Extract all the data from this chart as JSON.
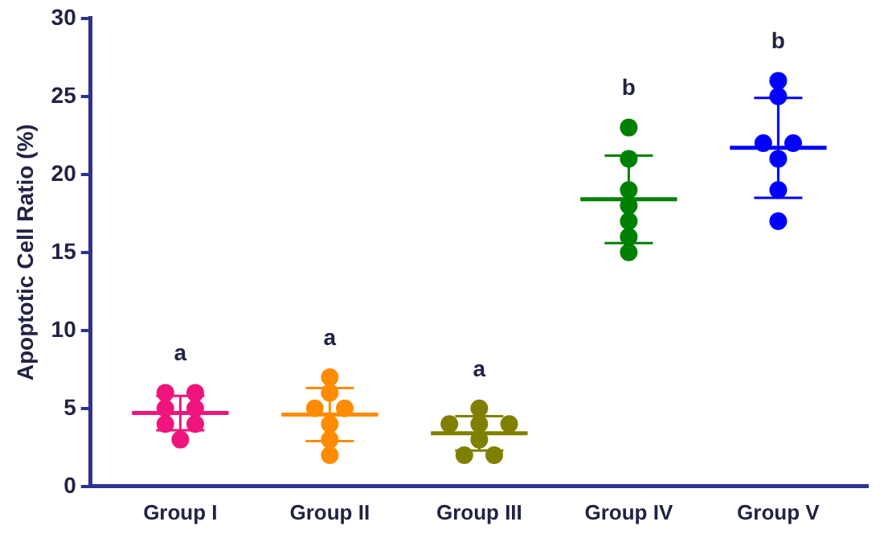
{
  "chart_data": {
    "type": "scatter",
    "ylabel": "Apoptotic Cell Ratio (%)",
    "categories": [
      "Group I",
      "Group II",
      "Group III",
      "Group IV",
      "Group V"
    ],
    "ylim": [
      0,
      30
    ],
    "yticks": [
      0,
      5,
      10,
      15,
      20,
      25,
      30
    ],
    "grid": false,
    "legend": false,
    "marker": "circle",
    "series": [
      {
        "color": "#f0147d",
        "x": [
          "Group I",
          "Group I",
          "Group I",
          "Group I",
          "Group I",
          "Group I",
          "Group I"
        ],
        "values": [
          5,
          5,
          6,
          6,
          4,
          4,
          3
        ]
      },
      {
        "color": "#ff8c00",
        "x": [
          "Group II",
          "Group II",
          "Group II",
          "Group II",
          "Group II",
          "Group II",
          "Group II"
        ],
        "values": [
          7,
          6,
          5,
          5,
          4,
          3,
          2
        ]
      },
      {
        "color": "#808000",
        "x": [
          "Group III",
          "Group III",
          "Group III",
          "Group III",
          "Group III",
          "Group III",
          "Group III"
        ],
        "values": [
          4,
          4,
          4,
          5,
          3,
          2,
          2
        ]
      },
      {
        "color": "#008000",
        "x": [
          "Group IV",
          "Group IV",
          "Group IV",
          "Group IV",
          "Group IV",
          "Group IV",
          "Group IV"
        ],
        "values": [
          23,
          21,
          19,
          18,
          17,
          16,
          15
        ]
      },
      {
        "color": "#0000ff",
        "x": [
          "Group V",
          "Group V",
          "Group V",
          "Group V",
          "Group V",
          "Group V",
          "Group V"
        ],
        "values": [
          26,
          25,
          22,
          22,
          21,
          19,
          17
        ]
      },
      {
        "type": "box",
        "colors": [
          "#f0147d",
          "#ff8c00",
          "#808000",
          "#008000",
          "#0000ff"
        ],
        "boxes": [
          {
            "low": 3.6,
            "q1": 4.7,
            "median": 4.7,
            "q3": 4.7,
            "high": 5.8
          },
          {
            "low": 2.9,
            "q1": 4.6,
            "median": 4.6,
            "q3": 4.6,
            "high": 6.3
          },
          {
            "low": 2.3,
            "q1": 3.4,
            "median": 3.4,
            "q3": 3.4,
            "high": 4.5
          },
          {
            "low": 15.6,
            "q1": 18.4,
            "median": 18.4,
            "q3": 18.4,
            "high": 21.2
          },
          {
            "low": 18.5,
            "q1": 21.7,
            "median": 21.7,
            "q3": 21.7,
            "high": 24.9
          }
        ]
      }
    ],
    "annotations": [
      "a",
      "a",
      "a",
      "b",
      "b"
    ]
  }
}
